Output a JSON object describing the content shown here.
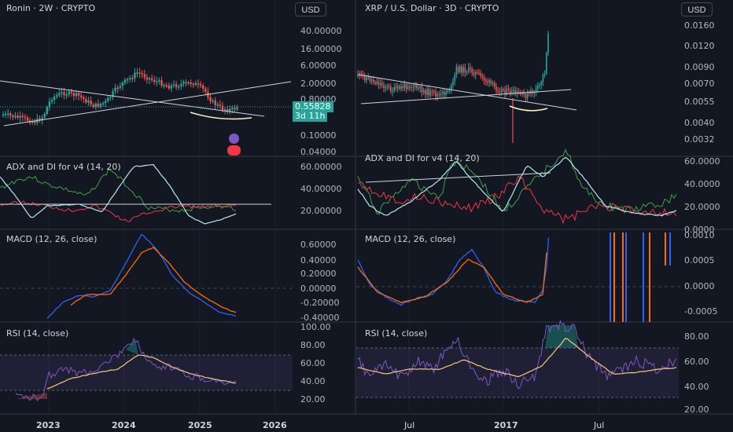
{
  "colors": {
    "bg": "#131722",
    "grid": "#2a2e39",
    "text": "#d1d4dc",
    "up": "#26a69a",
    "down": "#ef5350",
    "adx": "#b2ebf2",
    "diplus": "#43a047",
    "diminus": "#f23645",
    "macd": "#2962ff",
    "signal": "#ff6d00",
    "rsi": "#7e57c2",
    "rsima": "#f7c97b",
    "trend": "#d1d4dc",
    "wick_hi": "#fff3c4"
  },
  "left": {
    "title": "Ronin · 2W · CRYPTO",
    "currency_button": "USD",
    "price_ticks": [
      "40.00000",
      "16.00000",
      "6.00000",
      "2.00000",
      "0.80000",
      "0.10000",
      "0.04000"
    ],
    "last_price": "0.55828",
    "countdown": "3d 11h",
    "adx_title": "ADX and DI for v4 (14, 20)",
    "adx_ticks": [
      "60.00000",
      "40.00000",
      "20.00000"
    ],
    "macd_title": "MACD (12, 26, close)",
    "macd_ticks": [
      "0.60000",
      "0.40000",
      "0.20000",
      "0.00000",
      "-0.20000",
      "-0.40000"
    ],
    "rsi_title": "RSI (14, close)",
    "rsi_ticks": [
      "100.00",
      "80.00",
      "60.00",
      "40.00",
      "20.00"
    ],
    "x_ticks": [
      "2023",
      "2024",
      "2025",
      "2026"
    ]
  },
  "right": {
    "title": "XRP / U.S. Dollar · 3D · CRYPTO",
    "currency_button": "USD",
    "price_ticks": [
      "0.0160",
      "0.0120",
      "0.0090",
      "0.0070",
      "0.0055",
      "0.0040",
      "0.0032"
    ],
    "adx_title": "ADX and DI for v4 (14, 20)",
    "adx_ticks": [
      "60.0000",
      "40.0000",
      "20.0000",
      "0.0000"
    ],
    "macd_title": "MACD (12, 26, close)",
    "macd_ticks": [
      "0.0010",
      "0.0005",
      "0.0000",
      "-0.0005"
    ],
    "rsi_title": "RSI (14, close)",
    "rsi_ticks": [
      "80.00",
      "60.00",
      "40.00",
      "20.00"
    ],
    "x_ticks": [
      "Jul",
      "2017",
      "Jul"
    ]
  },
  "chart_data": [
    {
      "type": "line",
      "title": "Ronin · 2W · CRYPTO",
      "panel": "price",
      "scale": "log",
      "x": [
        "2022-08",
        "2022-11",
        "2023-02",
        "2023-05",
        "2023-08",
        "2023-11",
        "2024-02",
        "2024-05",
        "2024-08",
        "2024-11",
        "2025-02",
        "2025-05"
      ],
      "series": [
        {
          "name": "close",
          "values": [
            0.25,
            0.2,
            0.55,
            0.45,
            0.3,
            1.6,
            3.5,
            2.6,
            1.6,
            1.9,
            0.8,
            0.56
          ]
        }
      ],
      "last": 0.55828
    },
    {
      "type": "line",
      "title": "XRP / U.S. Dollar · 3D · CRYPTO",
      "panel": "price",
      "scale": "log",
      "x": [
        "2016-03",
        "2016-05",
        "2016-07",
        "2016-09",
        "2016-11",
        "2017-01",
        "2017-03",
        "2017-04"
      ],
      "series": [
        {
          "name": "close",
          "values": [
            0.007,
            0.0058,
            0.0062,
            0.0058,
            0.009,
            0.0064,
            0.006,
            0.016
          ]
        }
      ]
    }
  ]
}
